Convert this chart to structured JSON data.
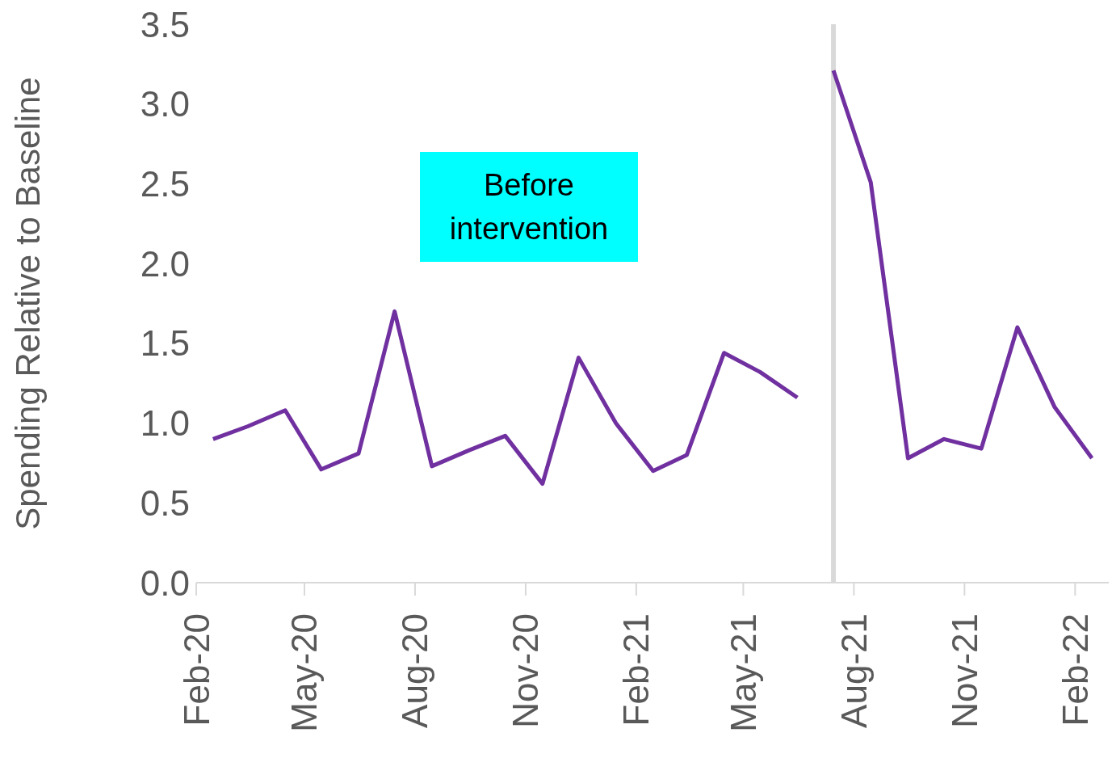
{
  "chart_data": {
    "type": "line",
    "ylabel": "Spending Relative to Baseline",
    "annotations": [
      "Before intervention"
    ],
    "series": [
      {
        "color": "#7030a0",
        "x": [
          "2020-02-15",
          "2020-03-15",
          "2020-04-15",
          "2020-05-15",
          "2020-06-15",
          "2020-07-15",
          "2020-08-15",
          "2020-09-15",
          "2020-10-15",
          "2020-11-15",
          "2020-12-15",
          "2021-01-15",
          "2021-02-15",
          "2021-03-15",
          "2021-04-15",
          "2021-05-15",
          "2021-06-15"
        ],
        "values": [
          0.9,
          0.98,
          1.08,
          0.71,
          0.81,
          1.7,
          0.73,
          0.83,
          0.92,
          0.62,
          1.41,
          1.0,
          0.7,
          0.8,
          1.44,
          1.32,
          1.16
        ]
      },
      {
        "color": "#7030a0",
        "x": [
          "2021-07-15",
          "2021-08-15",
          "2021-09-15",
          "2021-10-15",
          "2021-11-15",
          "2021-12-15",
          "2022-01-15",
          "2022-02-15"
        ],
        "values": [
          3.21,
          2.51,
          0.78,
          0.9,
          0.84,
          1.6,
          1.1,
          0.78
        ]
      }
    ],
    "xlim": [
      "2020-02-01",
      "2022-03-01"
    ],
    "xticks": [
      {
        "value": "2020-02-01",
        "label": "Feb-20"
      },
      {
        "value": "2020-05-01",
        "label": "May-20"
      },
      {
        "value": "2020-08-01",
        "label": "Aug-20"
      },
      {
        "value": "2020-11-01",
        "label": "Nov-20"
      },
      {
        "value": "2021-02-01",
        "label": "Feb-21"
      },
      {
        "value": "2021-05-01",
        "label": "May-21"
      },
      {
        "value": "2021-08-01",
        "label": "Aug-21"
      },
      {
        "value": "2021-11-01",
        "label": "Nov-21"
      },
      {
        "value": "2022-02-01",
        "label": "Feb-22"
      }
    ],
    "ylim": [
      0,
      3.5
    ],
    "yticks": [
      {
        "value": 0,
        "label": "0.0"
      },
      {
        "value": 0.5,
        "label": "0.5"
      },
      {
        "value": 1,
        "label": "1.0"
      },
      {
        "value": 1.5,
        "label": "1.5"
      },
      {
        "value": 2,
        "label": "2.0"
      },
      {
        "value": 2.5,
        "label": "2.5"
      },
      {
        "value": 3,
        "label": "3.0"
      },
      {
        "value": 3.5,
        "label": "3.5"
      }
    ],
    "ref_lines": [
      {
        "axis": "x",
        "value": "2021-07-15",
        "label": null,
        "color": "#d9d9d9"
      }
    ],
    "grid": false,
    "legend": false,
    "marker": "none",
    "line_style": "solid"
  }
}
